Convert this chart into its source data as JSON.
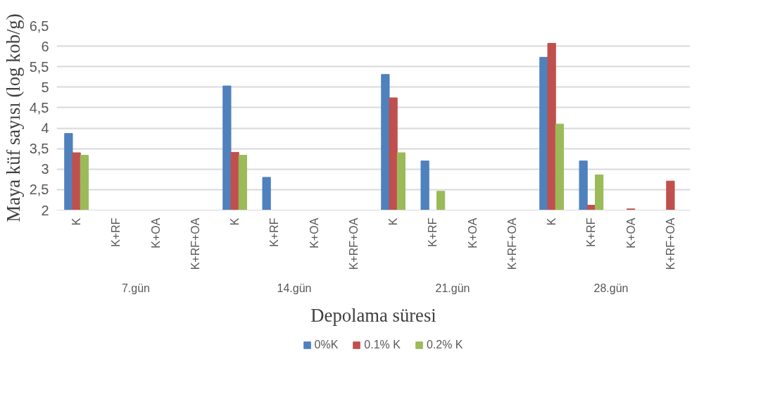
{
  "chart_data": {
    "type": "bar",
    "xlabel": "Depolama süresi",
    "ylabel": "Maya küf sayısı (log kob/g)",
    "categories": [
      "K",
      "K+RF",
      "K+OA",
      "K+RF+OA",
      "K",
      "K+RF",
      "K+OA",
      "K+RF+OA",
      "K",
      "K+RF",
      "K+OA",
      "K+RF+OA",
      "K",
      "K+RF",
      "K+OA",
      "K+RF+OA"
    ],
    "annotations": [
      "7.gün",
      "14.gün",
      "21.gün",
      "28.gün"
    ],
    "series": [
      {
        "name": "0%K",
        "color": "#4f81bd",
        "values": [
          3.87,
          null,
          null,
          null,
          5.03,
          2.8,
          null,
          null,
          5.31,
          3.2,
          null,
          null,
          5.73,
          3.2,
          null,
          null
        ]
      },
      {
        "name": "0.1% K",
        "color": "#c0504d",
        "values": [
          3.4,
          null,
          null,
          null,
          3.41,
          null,
          null,
          null,
          4.74,
          null,
          null,
          null,
          6.07,
          2.12,
          2.03,
          2.71
        ]
      },
      {
        "name": "0.2% K",
        "color": "#9bbb59",
        "values": [
          3.34,
          null,
          null,
          null,
          3.34,
          null,
          null,
          null,
          3.4,
          2.46,
          null,
          null,
          4.1,
          2.86,
          null,
          null
        ]
      }
    ],
    "ylim": [
      2,
      6.5
    ],
    "yticks": [
      2,
      {
        "value": 2.5,
        "label": "2,5"
      },
      3,
      {
        "value": 3.5,
        "label": "3,5"
      },
      4,
      {
        "value": 4.5,
        "label": "4,5"
      },
      5,
      {
        "value": 5.5,
        "label": "5,5"
      },
      6,
      {
        "value": 6.5,
        "label": "6,5"
      }
    ],
    "grid": "y",
    "legend": "bottom"
  }
}
